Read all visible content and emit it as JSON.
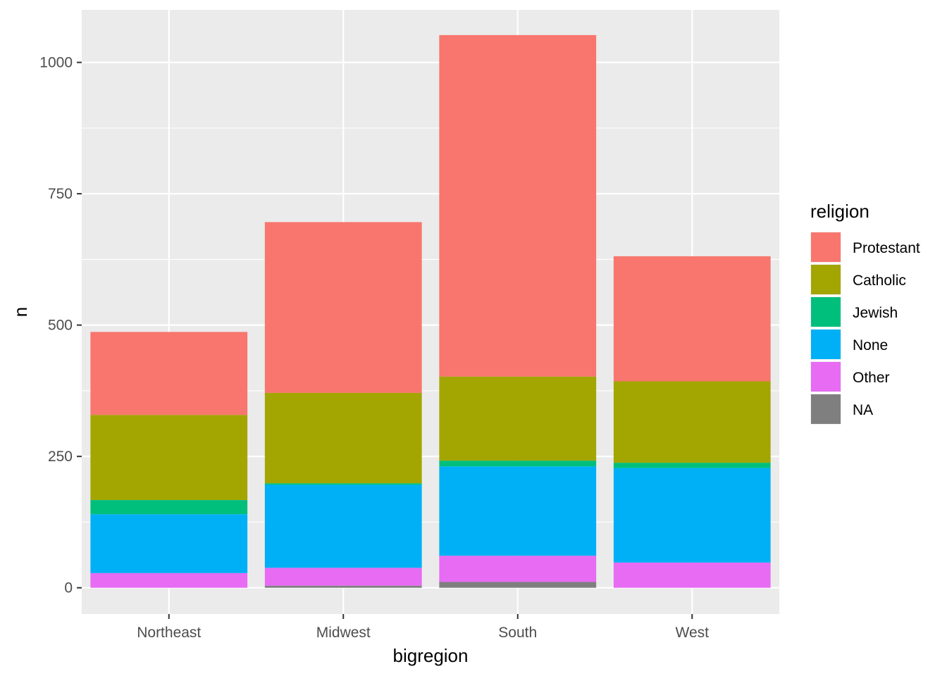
{
  "chart_data": {
    "type": "bar",
    "stacked": true,
    "categories": [
      "Northeast",
      "Midwest",
      "South",
      "West"
    ],
    "xlabel": "bigregion",
    "ylabel": "n",
    "ylim": [
      -50,
      1100
    ],
    "yticks": [
      0,
      250,
      500,
      750,
      1000
    ],
    "grid": true,
    "legend": {
      "title": "religion",
      "position": "right"
    },
    "series": [
      {
        "name": "Protestant",
        "color": "#F8766D",
        "values": [
          158,
          325,
          650,
          238
        ]
      },
      {
        "name": "Catholic",
        "color": "#A3A500",
        "values": [
          162,
          172,
          160,
          155
        ]
      },
      {
        "name": "Jewish",
        "color": "#00BF7D",
        "values": [
          27,
          3,
          11,
          10
        ]
      },
      {
        "name": "None",
        "color": "#00B0F6",
        "values": [
          112,
          158,
          170,
          180
        ]
      },
      {
        "name": "Other",
        "color": "#E76BF3",
        "values": [
          28,
          34,
          50,
          48
        ]
      },
      {
        "name": "NA",
        "color": "#7F7F7F",
        "values": [
          0,
          4,
          11,
          0
        ]
      }
    ]
  }
}
